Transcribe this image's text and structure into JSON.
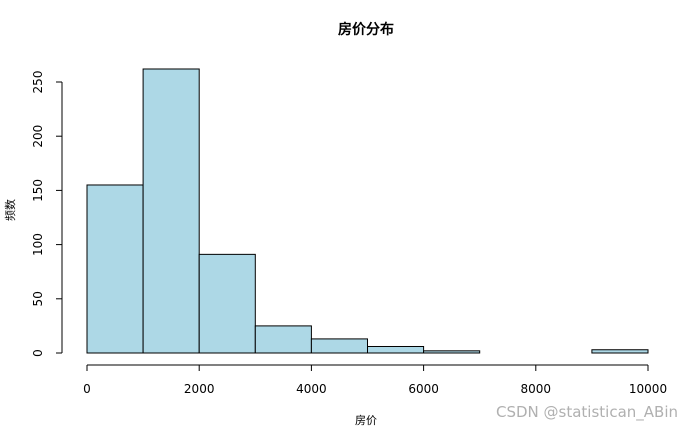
{
  "chart_data": {
    "type": "histogram",
    "title": "房价分布",
    "x_label": "房价",
    "y_label": "频数",
    "bins": [
      0,
      1000,
      2000,
      3000,
      4000,
      5000,
      6000,
      7000,
      8000,
      9000,
      10000
    ],
    "counts": [
      155,
      262,
      91,
      25,
      13,
      6,
      2,
      0,
      0,
      3
    ],
    "color": "#add8e6",
    "xlim": [
      0,
      10000
    ],
    "xticks": [
      0,
      2000,
      4000,
      6000,
      8000,
      10000
    ],
    "ylim": [
      0,
      250
    ],
    "yticks": [
      0,
      50,
      100,
      150,
      200,
      250
    ]
  },
  "watermark": "CSDN @statistican_ABin"
}
